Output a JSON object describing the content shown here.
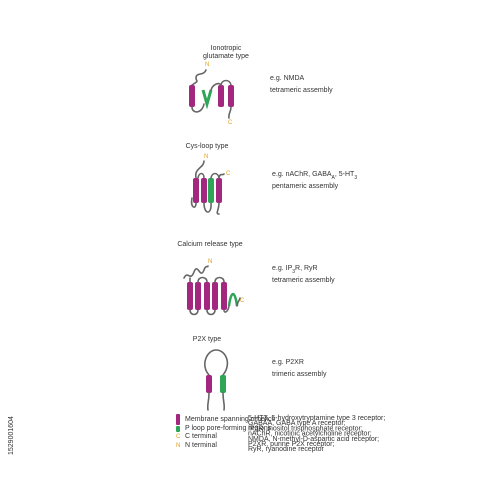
{
  "sections": [
    {
      "title": [
        "Ionotropic",
        "glutamate type"
      ],
      "n_label": "N",
      "c_label": "C",
      "example": [
        "e.g. NMDA"
      ],
      "assembly": "tetrameric assembly"
    },
    {
      "title": [
        "Cys-loop type"
      ],
      "n_label": "N",
      "c_label": "C",
      "example": [
        "e.g. nAChR, GABA",
        "A",
        ", 5-HT",
        "3"
      ],
      "assembly": "pentameric assembly"
    },
    {
      "title": [
        "Calcium release type"
      ],
      "n_label": "N",
      "c_label": "C",
      "example": [
        "e.g. IP",
        "3",
        "R, RyR"
      ],
      "assembly": "tetrameric assembly"
    },
    {
      "title": [
        "P2X type"
      ],
      "example": [
        "e.g. P2XR"
      ],
      "assembly": "trimeric assembly"
    }
  ],
  "legend": [
    "Membrane spanning α-helics",
    "P loop pore-forming regions",
    "C terminal",
    "N terminal"
  ],
  "legend_symbols": [
    "C",
    "N"
  ],
  "abbreviations": [
    "5-HT3, 5-hydroxytryptamine type 3 receptor;",
    "GABAA, GABA type A receptor;",
    "IP3R, inositol trisphosphate receptor;",
    "nAChR, nicotinic acetylcholine receptor;",
    "NMDA, N-methyl-D-aspartic acid receptor;",
    "P2XR, purine P2X receptor;",
    "RyR, ryanodine receptor"
  ],
  "image_id": "1529001604"
}
